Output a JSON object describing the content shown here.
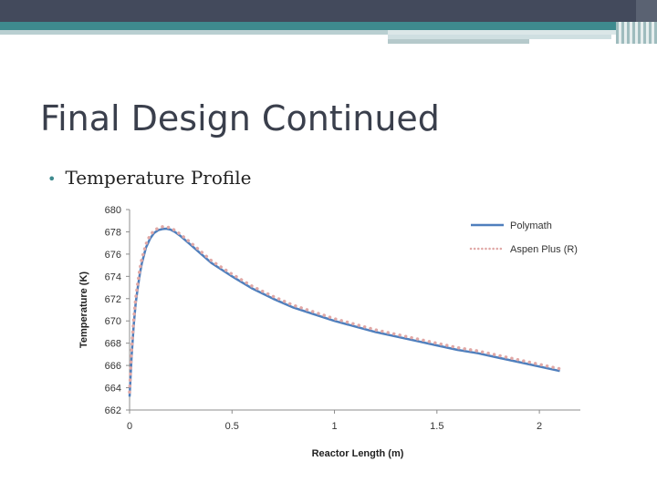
{
  "slide": {
    "title": "Final Design Continued",
    "bullet": "Temperature Profile",
    "colors": {
      "top_bar": "#434a5c",
      "accent_teal": "#3e8a8e",
      "title_text": "#3a3f4c"
    }
  },
  "chart_data": {
    "type": "line",
    "title": "",
    "xlabel": "Reactor Length (m)",
    "ylabel": "Temperature (K)",
    "xlim": [
      0,
      2.2
    ],
    "ylim": [
      662,
      680
    ],
    "x_ticks": [
      "0",
      "0.5",
      "1",
      "1.5",
      "2"
    ],
    "y_ticks": [
      "662",
      "664",
      "666",
      "668",
      "670",
      "672",
      "674",
      "676",
      "678",
      "680"
    ],
    "grid": false,
    "legend_position": "top-right",
    "series": [
      {
        "name": "Polymath",
        "color": "#4f7fbd",
        "style": "solid",
        "x": [
          0,
          0.01,
          0.02,
          0.03,
          0.04,
          0.05,
          0.06,
          0.08,
          0.1,
          0.12,
          0.14,
          0.16,
          0.18,
          0.2,
          0.22,
          0.25,
          0.3,
          0.35,
          0.4,
          0.45,
          0.5,
          0.6,
          0.7,
          0.8,
          0.9,
          1.0,
          1.1,
          1.2,
          1.3,
          1.4,
          1.5,
          1.6,
          1.7,
          1.8,
          1.9,
          2.0,
          2.1
        ],
        "y": [
          663.2,
          666.8,
          669.6,
          671.6,
          673.0,
          674.2,
          675.2,
          676.6,
          677.4,
          677.9,
          678.15,
          678.25,
          678.28,
          678.2,
          678.0,
          677.6,
          676.8,
          676.0,
          675.2,
          674.6,
          674.0,
          672.9,
          672.0,
          671.2,
          670.6,
          670.0,
          669.5,
          669.0,
          668.6,
          668.2,
          667.8,
          667.4,
          667.1,
          666.7,
          666.3,
          665.9,
          665.5
        ]
      },
      {
        "name": "Aspen Plus (R)",
        "color": "#e0a8a6",
        "style": "dotted",
        "x": [
          0,
          0.01,
          0.02,
          0.03,
          0.04,
          0.05,
          0.06,
          0.08,
          0.1,
          0.12,
          0.14,
          0.16,
          0.18,
          0.2,
          0.22,
          0.25,
          0.3,
          0.35,
          0.4,
          0.45,
          0.5,
          0.6,
          0.7,
          0.8,
          0.9,
          1.0,
          1.1,
          1.2,
          1.3,
          1.4,
          1.5,
          1.6,
          1.7,
          1.8,
          1.9,
          2.0,
          2.1
        ],
        "y": [
          663.6,
          667.3,
          670.1,
          672.0,
          673.4,
          674.6,
          675.6,
          676.9,
          677.7,
          678.1,
          678.35,
          678.45,
          678.45,
          678.35,
          678.15,
          677.75,
          677.0,
          676.2,
          675.4,
          674.8,
          674.2,
          673.1,
          672.2,
          671.4,
          670.8,
          670.2,
          669.7,
          669.2,
          668.8,
          668.4,
          668.0,
          667.6,
          667.3,
          666.9,
          666.5,
          666.1,
          665.7
        ]
      }
    ]
  }
}
